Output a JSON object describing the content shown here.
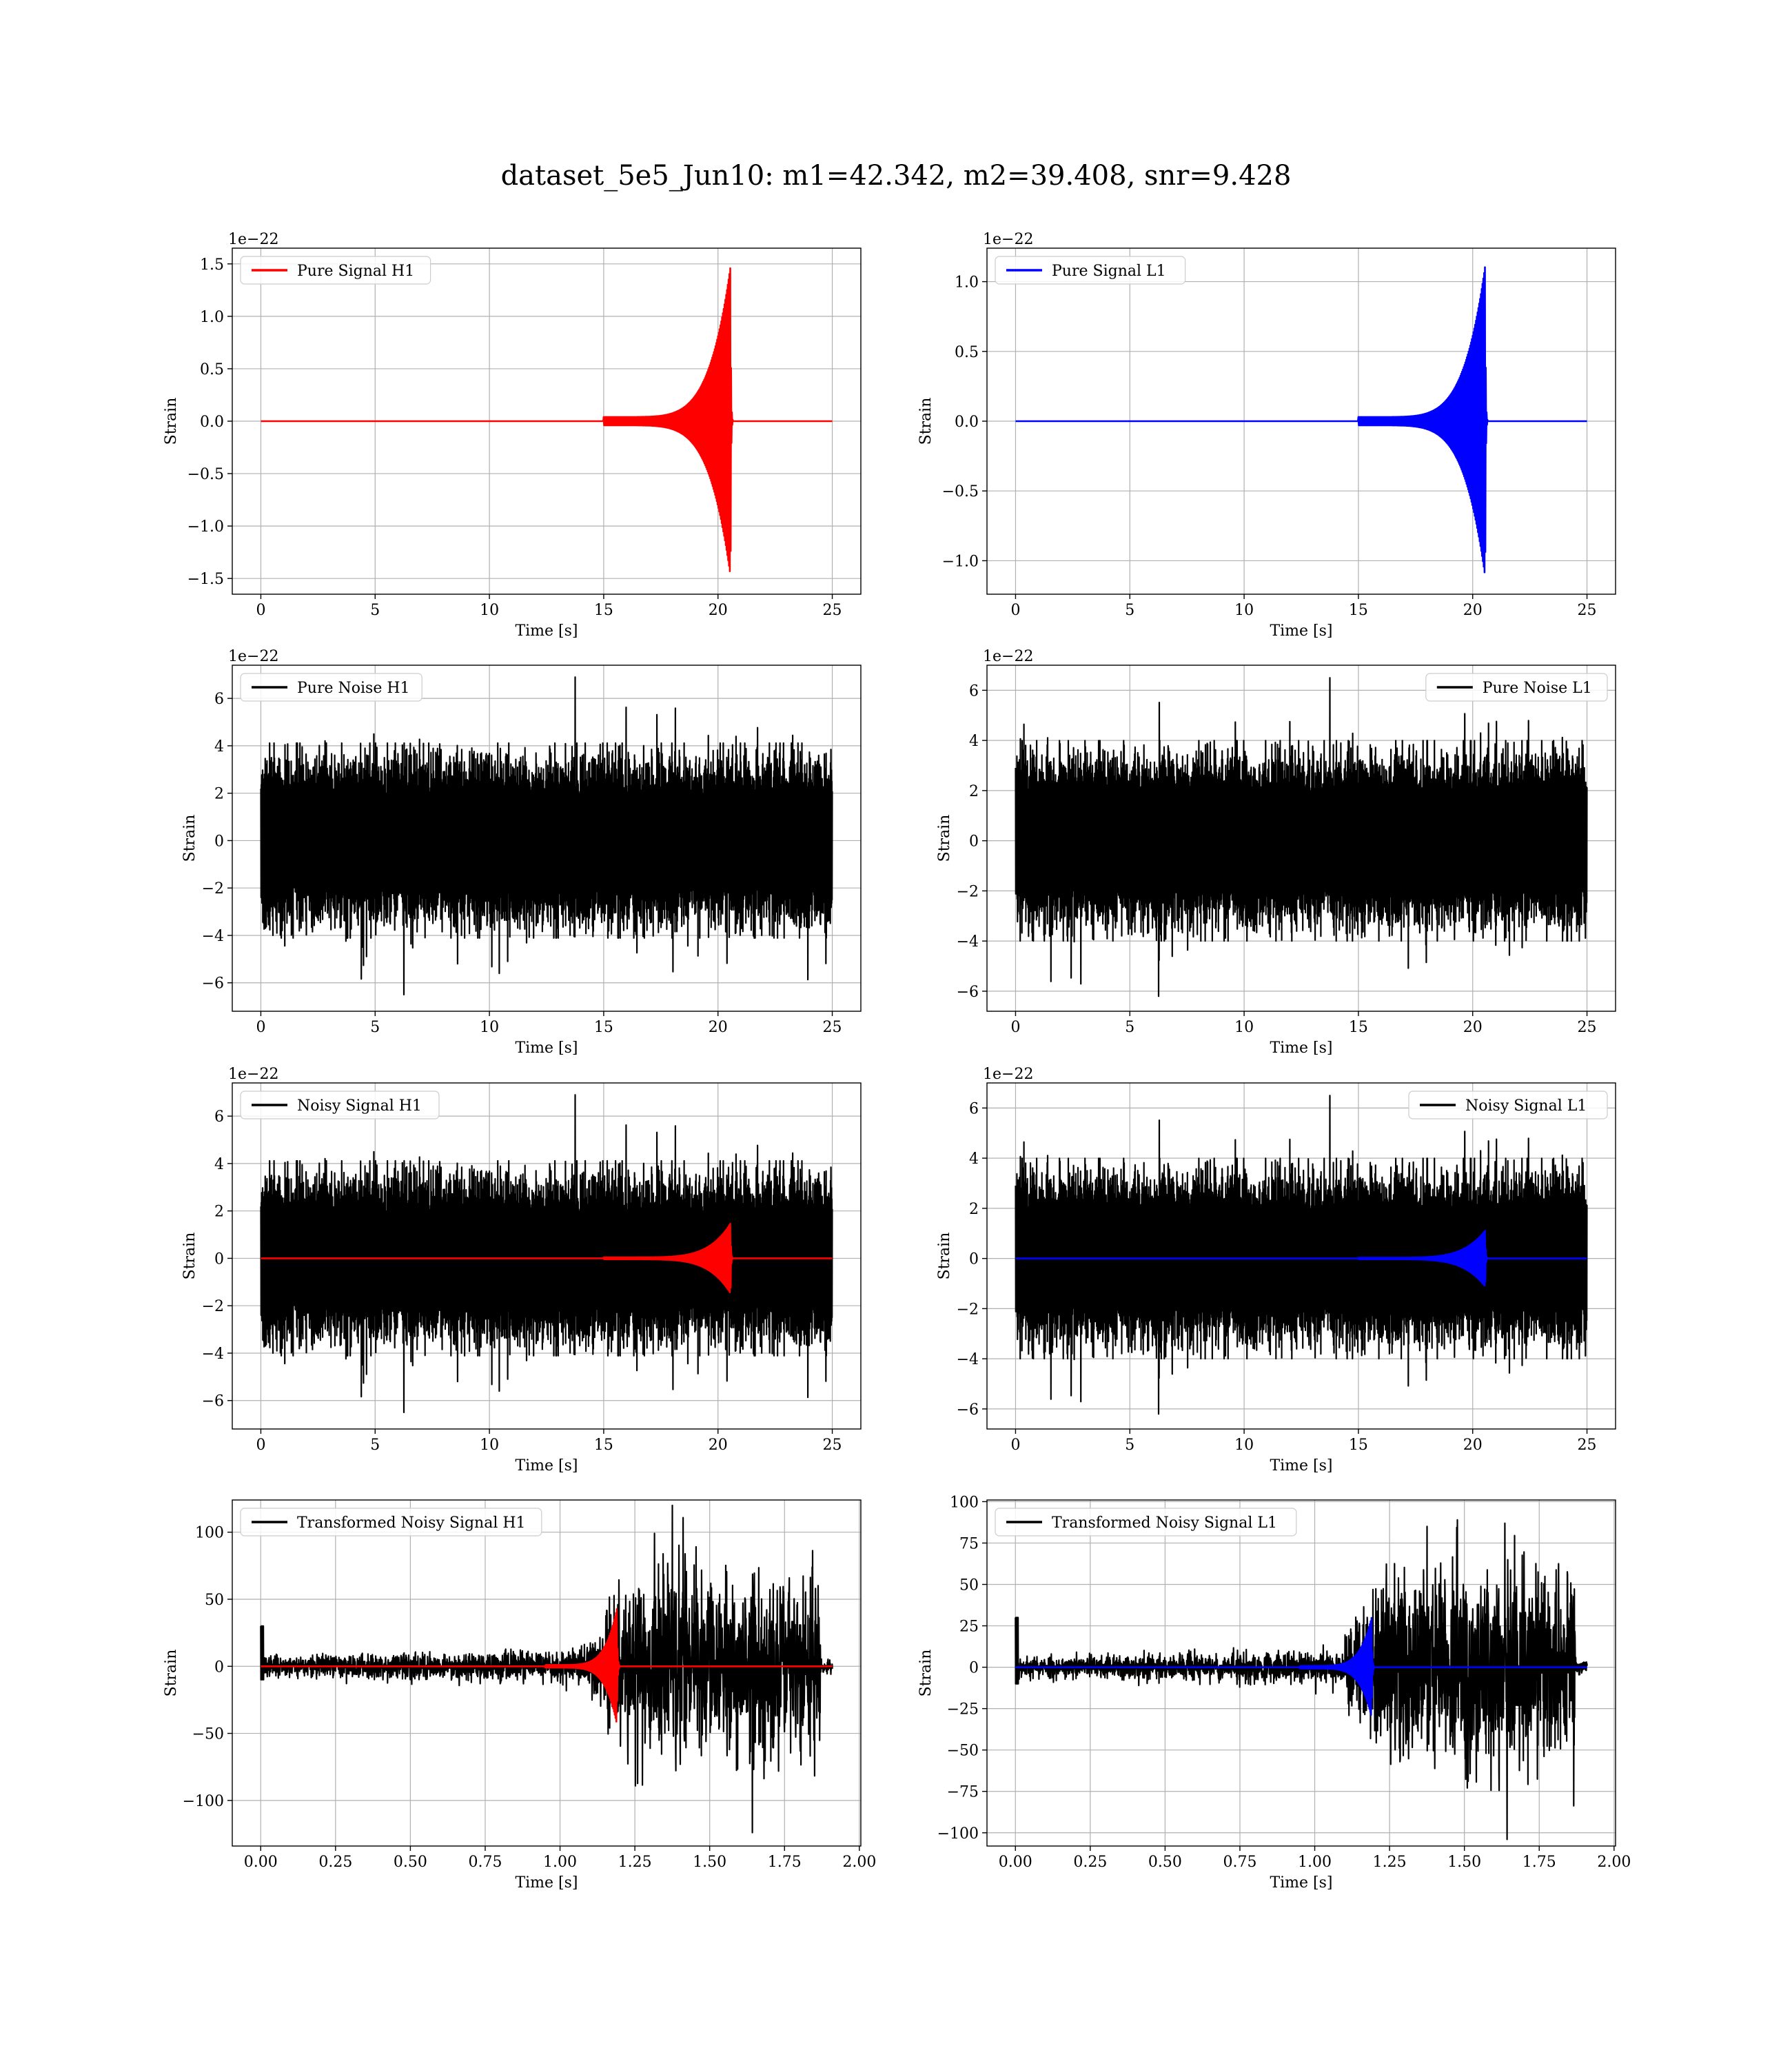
{
  "figure": {
    "title": "dataset_5e5_Jun10: m1=42.342, m2=39.408, snr=9.428"
  },
  "chart_data": [
    {
      "id": "pure-signal-h1",
      "type": "line",
      "xlabel": "Time [s]",
      "ylabel": "Strain",
      "offset_label": "1e−22",
      "xlim": [
        -1.25,
        26.25
      ],
      "ylim": [
        -1.65,
        1.65
      ],
      "xticks": [
        0,
        5,
        10,
        15,
        20,
        25
      ],
      "xtick_labels": [
        "0",
        "5",
        "10",
        "15",
        "20",
        "25"
      ],
      "yticks": [
        -1.5,
        -1.0,
        -0.5,
        0.0,
        0.5,
        1.0,
        1.5
      ],
      "ytick_labels": [
        "−1.5",
        "−1.0",
        "−0.5",
        "0.0",
        "0.5",
        "1.0",
        "1.5"
      ],
      "grid": true,
      "legend": {
        "placement": "upper-left"
      },
      "series": [
        {
          "name": "Pure Signal H1",
          "color": "#ff0000",
          "kind": "chirp",
          "x_range": [
            0,
            25
          ],
          "merger_x": 20.55,
          "start_x": 15,
          "peak": 1.48,
          "base_amp": 0.04,
          "post_x": 20.65
        }
      ]
    },
    {
      "id": "pure-signal-l1",
      "type": "line",
      "xlabel": "Time [s]",
      "ylabel": "Strain",
      "offset_label": "1e−22",
      "xlim": [
        -1.25,
        26.25
      ],
      "ylim": [
        -1.24,
        1.24
      ],
      "xticks": [
        0,
        5,
        10,
        15,
        20,
        25
      ],
      "xtick_labels": [
        "0",
        "5",
        "10",
        "15",
        "20",
        "25"
      ],
      "yticks": [
        -1.0,
        -0.5,
        0.0,
        0.5,
        1.0
      ],
      "ytick_labels": [
        "−1.0",
        "−0.5",
        "0.0",
        "0.5",
        "1.0"
      ],
      "grid": true,
      "legend": {
        "placement": "upper-left"
      },
      "series": [
        {
          "name": "Pure Signal L1",
          "color": "#0000ff",
          "kind": "chirp",
          "x_range": [
            0,
            25
          ],
          "merger_x": 20.55,
          "start_x": 15,
          "peak": 1.12,
          "base_amp": 0.03,
          "post_x": 20.65
        }
      ]
    },
    {
      "id": "pure-noise-h1",
      "type": "line",
      "xlabel": "Time [s]",
      "ylabel": "Strain",
      "offset_label": "1e−22",
      "xlim": [
        -1.25,
        26.25
      ],
      "ylim": [
        -7.2,
        7.4
      ],
      "xticks": [
        0,
        5,
        10,
        15,
        20,
        25
      ],
      "xtick_labels": [
        "0",
        "5",
        "10",
        "15",
        "20",
        "25"
      ],
      "yticks": [
        -6,
        -4,
        -2,
        0,
        2,
        4,
        6
      ],
      "ytick_labels": [
        "−6",
        "−4",
        "−2",
        "0",
        "2",
        "4",
        "6"
      ],
      "grid": true,
      "legend": {
        "placement": "upper-left"
      },
      "series": [
        {
          "name": "Pure Noise H1",
          "color": "#000000",
          "kind": "noise",
          "x_range": [
            0,
            25
          ],
          "core": 3.5,
          "peak_max": 6.9,
          "peak_min": -6.5,
          "seed": 11
        }
      ]
    },
    {
      "id": "pure-noise-l1",
      "type": "line",
      "xlabel": "Time [s]",
      "ylabel": "Strain",
      "offset_label": "1e−22",
      "xlim": [
        -1.25,
        26.25
      ],
      "ylim": [
        -6.8,
        7.0
      ],
      "xticks": [
        0,
        5,
        10,
        15,
        20,
        25
      ],
      "xtick_labels": [
        "0",
        "5",
        "10",
        "15",
        "20",
        "25"
      ],
      "yticks": [
        -6,
        -4,
        -2,
        0,
        2,
        4,
        6
      ],
      "ytick_labels": [
        "−6",
        "−4",
        "−2",
        "0",
        "2",
        "4",
        "6"
      ],
      "grid": true,
      "legend": {
        "placement": "upper-right"
      },
      "series": [
        {
          "name": "Pure Noise L1",
          "color": "#000000",
          "kind": "noise",
          "x_range": [
            0,
            25
          ],
          "core": 3.4,
          "peak_max": 6.5,
          "peak_min": -6.2,
          "seed": 23
        }
      ]
    },
    {
      "id": "noisy-signal-h1",
      "type": "line",
      "xlabel": "Time [s]",
      "ylabel": "Strain",
      "offset_label": "1e−22",
      "xlim": [
        -1.25,
        26.25
      ],
      "ylim": [
        -7.2,
        7.4
      ],
      "xticks": [
        0,
        5,
        10,
        15,
        20,
        25
      ],
      "xtick_labels": [
        "0",
        "5",
        "10",
        "15",
        "20",
        "25"
      ],
      "yticks": [
        -6,
        -4,
        -2,
        0,
        2,
        4,
        6
      ],
      "ytick_labels": [
        "−6",
        "−4",
        "−2",
        "0",
        "2",
        "4",
        "6"
      ],
      "grid": true,
      "legend": {
        "placement": "upper-left"
      },
      "series": [
        {
          "name": "Noisy Signal H1",
          "color": "#000000",
          "kind": "noise",
          "x_range": [
            0,
            25
          ],
          "core": 3.5,
          "peak_max": 6.9,
          "peak_min": -6.5,
          "seed": 11
        },
        {
          "color": "#ff0000",
          "kind": "chirp",
          "x_range": [
            0,
            25
          ],
          "merger_x": 20.55,
          "start_x": 15,
          "peak": 1.48,
          "base_amp": 0.04,
          "post_x": 20.65
        }
      ]
    },
    {
      "id": "noisy-signal-l1",
      "type": "line",
      "xlabel": "Time [s]",
      "ylabel": "Strain",
      "offset_label": "1e−22",
      "xlim": [
        -1.25,
        26.25
      ],
      "ylim": [
        -6.8,
        7.0
      ],
      "xticks": [
        0,
        5,
        10,
        15,
        20,
        25
      ],
      "xtick_labels": [
        "0",
        "5",
        "10",
        "15",
        "20",
        "25"
      ],
      "yticks": [
        -6,
        -4,
        -2,
        0,
        2,
        4,
        6
      ],
      "ytick_labels": [
        "−6",
        "−4",
        "−2",
        "0",
        "2",
        "4",
        "6"
      ],
      "grid": true,
      "legend": {
        "placement": "upper-right"
      },
      "series": [
        {
          "name": "Noisy Signal L1",
          "color": "#000000",
          "kind": "noise",
          "x_range": [
            0,
            25
          ],
          "core": 3.4,
          "peak_max": 6.5,
          "peak_min": -6.2,
          "seed": 23
        },
        {
          "color": "#0000ff",
          "kind": "chirp",
          "x_range": [
            0,
            25
          ],
          "merger_x": 20.55,
          "start_x": 15,
          "peak": 1.12,
          "base_amp": 0.03,
          "post_x": 20.65
        }
      ]
    },
    {
      "id": "transformed-noisy-signal-h1",
      "type": "line",
      "xlabel": "Time [s]",
      "ylabel": "Strain",
      "offset_label": "",
      "xlim": [
        -0.095,
        2.005
      ],
      "ylim": [
        -134,
        124
      ],
      "xticks": [
        0.0,
        0.25,
        0.5,
        0.75,
        1.0,
        1.25,
        1.5,
        1.75,
        2.0
      ],
      "xtick_labels": [
        "0.00",
        "0.25",
        "0.50",
        "0.75",
        "1.00",
        "1.25",
        "1.50",
        "1.75",
        "2.00"
      ],
      "yticks": [
        -100,
        -50,
        0,
        50,
        100
      ],
      "ytick_labels": [
        "−100",
        "−50",
        "0",
        "50",
        "100"
      ],
      "grid": true,
      "legend": {
        "placement": "upper-left"
      },
      "series": [
        {
          "name": "Transformed Noisy Signal H1",
          "color": "#000000",
          "kind": "tnoise",
          "x_range": [
            0,
            1.91
          ],
          "low_amp": 6,
          "ramp_x": 1.1,
          "high_amp": 55,
          "peak_max": 120,
          "peak_min": -124,
          "end_x": 1.87,
          "seed": 37
        },
        {
          "color": "#ff0000",
          "kind": "chirp",
          "x_range": [
            0,
            1.91
          ],
          "merger_x": 1.19,
          "start_x": 0.95,
          "peak": 43,
          "base_amp": 1.0,
          "post_x": 1.2
        }
      ]
    },
    {
      "id": "transformed-noisy-signal-l1",
      "type": "line",
      "xlabel": "Time [s]",
      "ylabel": "Strain",
      "offset_label": "",
      "xlim": [
        -0.095,
        2.005
      ],
      "ylim": [
        -108,
        101
      ],
      "xticks": [
        0.0,
        0.25,
        0.5,
        0.75,
        1.0,
        1.25,
        1.5,
        1.75,
        2.0
      ],
      "xtick_labels": [
        "0.00",
        "0.25",
        "0.50",
        "0.75",
        "1.00",
        "1.25",
        "1.50",
        "1.75",
        "2.00"
      ],
      "yticks": [
        -100,
        -75,
        -50,
        -25,
        0,
        25,
        50,
        75,
        100
      ],
      "ytick_labels": [
        "−100",
        "−75",
        "−50",
        "−25",
        "0",
        "25",
        "50",
        "75",
        "100"
      ],
      "grid": true,
      "legend": {
        "placement": "upper-left"
      },
      "series": [
        {
          "name": "Transformed Noisy Signal L1",
          "color": "#000000",
          "kind": "tnoise",
          "x_range": [
            0,
            1.91
          ],
          "low_amp": 5,
          "ramp_x": 1.1,
          "high_amp": 48,
          "peak_max": 85,
          "peak_min": -104,
          "end_x": 1.87,
          "seed": 53
        },
        {
          "color": "#0000ff",
          "kind": "chirp",
          "x_range": [
            0,
            1.91
          ],
          "merger_x": 1.19,
          "start_x": 0.95,
          "peak": 30,
          "base_amp": 0.8,
          "post_x": 1.2
        }
      ]
    }
  ]
}
